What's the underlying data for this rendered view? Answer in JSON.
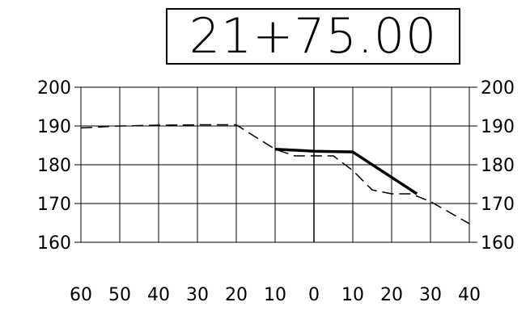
{
  "station": {
    "label": "21+75.00"
  },
  "chart_data": {
    "type": "line",
    "title": "21+75.00",
    "xlabel": "",
    "ylabel": "",
    "x_tick_labels": [
      "60",
      "50",
      "40",
      "30",
      "20",
      "10",
      "0",
      "10",
      "20",
      "30",
      "40"
    ],
    "y_tick_labels": [
      "200",
      "190",
      "180",
      "170",
      "160"
    ],
    "xlim": [
      -60,
      40
    ],
    "ylim": [
      160,
      200
    ],
    "grid": true,
    "legend": "none",
    "series": [
      {
        "style": "dashed",
        "color": "#000000",
        "x": [
          -60,
          -50,
          -40,
          -30,
          -20,
          -10,
          -5,
          0,
          5,
          10,
          15,
          20,
          25,
          30,
          40
        ],
        "y": [
          189.5,
          190,
          190.2,
          190.3,
          190.3,
          184,
          182.3,
          182.3,
          182.3,
          178.5,
          173.5,
          172.5,
          172.5,
          170.5,
          164.8
        ]
      },
      {
        "style": "solid-thick",
        "color": "#000000",
        "x": [
          -10,
          0,
          10,
          26.5
        ],
        "y": [
          184,
          183.5,
          183.3,
          172.5
        ]
      }
    ]
  }
}
